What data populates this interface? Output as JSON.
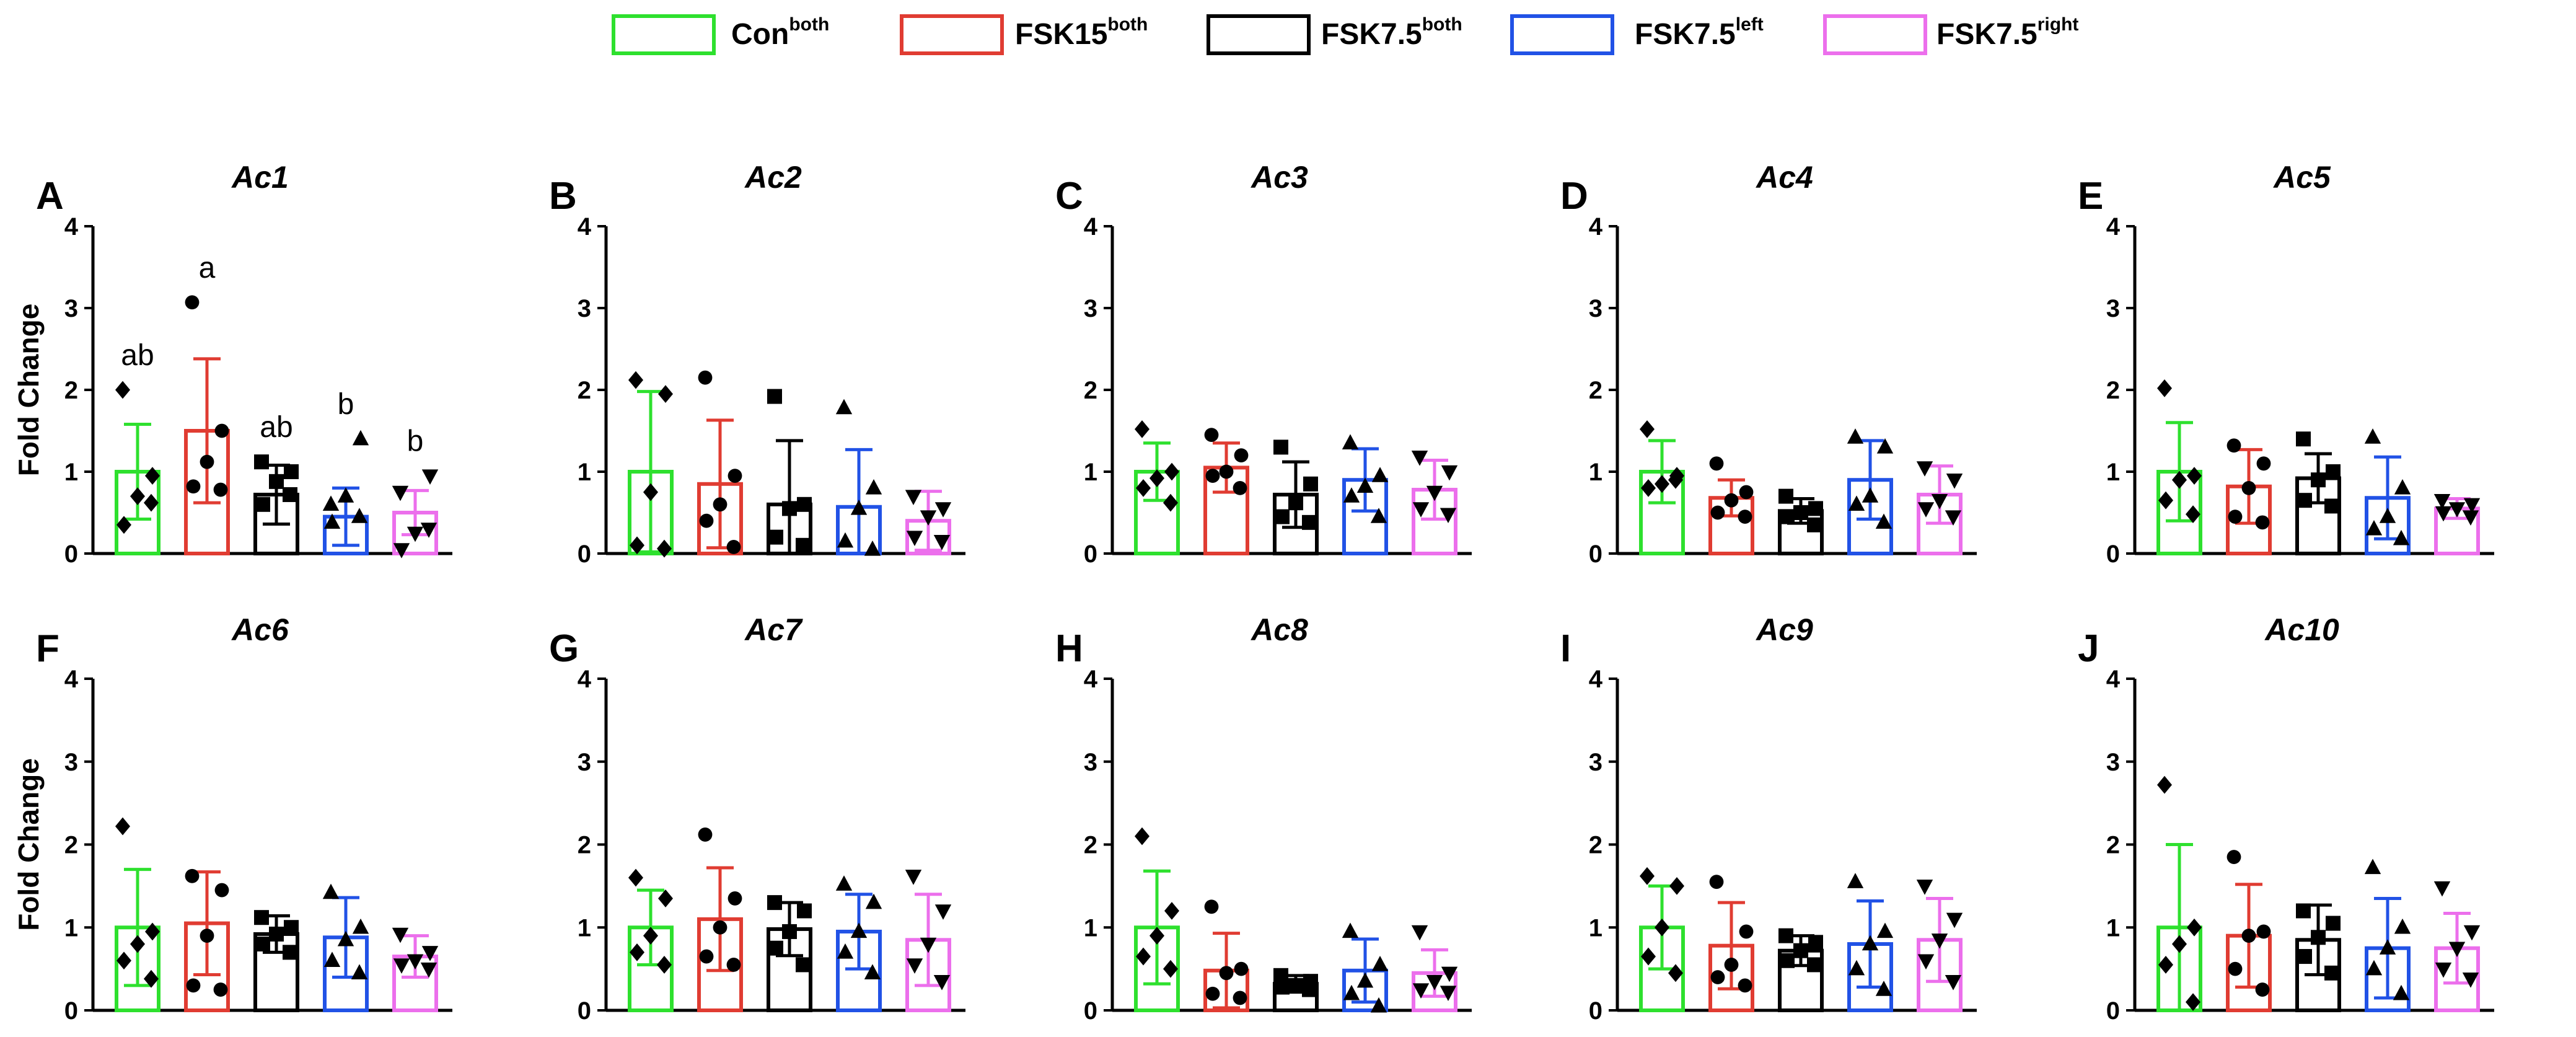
{
  "legend": {
    "items": [
      {
        "name": "Con",
        "sup": "both",
        "color": "#2EE02E"
      },
      {
        "name": "FSK15",
        "sup": "both",
        "color": "#E03C32"
      },
      {
        "name": "FSK7.5",
        "sup": "both",
        "color": "#000000"
      },
      {
        "name": "FSK7.5",
        "sup": "left",
        "color": "#2152E6"
      },
      {
        "name": "FSK7.5",
        "sup": "right",
        "color": "#EC6FEC"
      }
    ]
  },
  "common": {
    "ylabel": "Fold Change",
    "ylim": [
      0,
      4
    ],
    "yticks": [
      "0",
      "1",
      "2",
      "3",
      "4"
    ],
    "markers": [
      "diamond",
      "circle",
      "square",
      "triangle-up",
      "triangle-down"
    ]
  },
  "chart_data": [
    {
      "type": "bar",
      "letter": "A",
      "title": "Ac1",
      "ylabel": "Fold Change",
      "ylim": [
        0,
        4
      ],
      "categories": [
        "Conboth",
        "FSK15both",
        "FSK7.5both",
        "FSK7.5left",
        "FSK7.5right"
      ],
      "values": [
        1.0,
        1.5,
        0.72,
        0.45,
        0.5
      ],
      "sd": [
        0.58,
        0.88,
        0.36,
        0.35,
        0.27
      ],
      "points": [
        [
          2.0,
          0.95,
          0.7,
          0.35,
          0.62
        ],
        [
          3.07,
          1.5,
          1.12,
          0.82,
          0.78
        ],
        [
          1.12,
          1.0,
          0.88,
          0.6,
          0.72
        ],
        [
          0.6,
          1.4,
          0.7,
          0.38,
          0.45
        ],
        [
          0.75,
          0.95,
          0.25,
          0.05,
          0.3
        ]
      ],
      "annotations": [
        "ab",
        "a",
        "ab",
        "b",
        "b"
      ]
    },
    {
      "type": "bar",
      "letter": "B",
      "title": "Ac2",
      "ylabel": "",
      "ylim": [
        0,
        4
      ],
      "categories": [
        "Conboth",
        "FSK15both",
        "FSK7.5both",
        "FSK7.5left",
        "FSK7.5right"
      ],
      "values": [
        1.0,
        0.85,
        0.6,
        0.57,
        0.4
      ],
      "sd": [
        0.98,
        0.78,
        0.78,
        0.7,
        0.36
      ],
      "points": [
        [
          2.12,
          1.95,
          0.75,
          0.1,
          0.06
        ],
        [
          2.15,
          0.95,
          0.6,
          0.4,
          0.08
        ],
        [
          1.92,
          0.6,
          0.55,
          0.2,
          0.1
        ],
        [
          1.78,
          0.8,
          0.55,
          0.15,
          0.05
        ],
        [
          0.7,
          0.55,
          0.45,
          0.2,
          0.15
        ]
      ],
      "annotations": []
    },
    {
      "type": "bar",
      "letter": "C",
      "title": "Ac3",
      "ylabel": "",
      "ylim": [
        0,
        4
      ],
      "categories": [
        "Conboth",
        "FSK15both",
        "FSK7.5both",
        "FSK7.5left",
        "FSK7.5right"
      ],
      "values": [
        1.0,
        1.05,
        0.72,
        0.9,
        0.78
      ],
      "sd": [
        0.35,
        0.3,
        0.4,
        0.38,
        0.36
      ],
      "points": [
        [
          1.52,
          1.0,
          0.92,
          0.8,
          0.62
        ],
        [
          1.45,
          1.2,
          1.0,
          0.95,
          0.8
        ],
        [
          1.3,
          0.85,
          0.62,
          0.45,
          0.38
        ],
        [
          1.35,
          0.95,
          0.82,
          0.7,
          0.45
        ],
        [
          1.18,
          1.0,
          0.75,
          0.55,
          0.48
        ]
      ],
      "annotations": []
    },
    {
      "type": "bar",
      "letter": "D",
      "title": "Ac4",
      "ylabel": "",
      "ylim": [
        0,
        4
      ],
      "categories": [
        "Conboth",
        "FSK15both",
        "FSK7.5both",
        "FSK7.5left",
        "FSK7.5right"
      ],
      "values": [
        1.0,
        0.68,
        0.52,
        0.9,
        0.72
      ],
      "sd": [
        0.38,
        0.22,
        0.15,
        0.48,
        0.35
      ],
      "points": [
        [
          1.52,
          0.95,
          0.85,
          0.8,
          0.9
        ],
        [
          1.1,
          0.75,
          0.65,
          0.5,
          0.45
        ],
        [
          0.7,
          0.55,
          0.5,
          0.45,
          0.35
        ],
        [
          1.42,
          1.3,
          0.7,
          0.6,
          0.38
        ],
        [
          1.05,
          0.9,
          0.65,
          0.55,
          0.45
        ]
      ],
      "annotations": []
    },
    {
      "type": "bar",
      "letter": "E",
      "title": "Ac5",
      "ylabel": "",
      "ylim": [
        0,
        4
      ],
      "categories": [
        "Conboth",
        "FSK15both",
        "FSK7.5both",
        "FSK7.5left",
        "FSK7.5right"
      ],
      "values": [
        1.0,
        0.82,
        0.92,
        0.68,
        0.55
      ],
      "sd": [
        0.6,
        0.45,
        0.3,
        0.5,
        0.12
      ],
      "points": [
        [
          2.02,
          0.95,
          0.9,
          0.65,
          0.48
        ],
        [
          1.32,
          1.1,
          0.8,
          0.45,
          0.38
        ],
        [
          1.4,
          1.0,
          0.9,
          0.65,
          0.58
        ],
        [
          1.42,
          0.8,
          0.45,
          0.3,
          0.18
        ],
        [
          0.65,
          0.6,
          0.55,
          0.5,
          0.45
        ]
      ],
      "annotations": []
    },
    {
      "type": "bar",
      "letter": "F",
      "title": "Ac6",
      "ylabel": "Fold Change",
      "ylim": [
        0,
        4
      ],
      "categories": [
        "Conboth",
        "FSK15both",
        "FSK7.5both",
        "FSK7.5left",
        "FSK7.5right"
      ],
      "values": [
        1.0,
        1.05,
        0.92,
        0.88,
        0.65
      ],
      "sd": [
        0.7,
        0.62,
        0.22,
        0.48,
        0.25
      ],
      "points": [
        [
          2.22,
          0.95,
          0.8,
          0.6,
          0.38
        ],
        [
          1.62,
          1.45,
          0.9,
          0.3,
          0.25
        ],
        [
          1.12,
          1.0,
          0.92,
          0.8,
          0.7
        ],
        [
          1.42,
          1.0,
          0.85,
          0.6,
          0.45
        ],
        [
          0.92,
          0.7,
          0.6,
          0.55,
          0.5
        ]
      ],
      "annotations": []
    },
    {
      "type": "bar",
      "letter": "G",
      "title": "Ac7",
      "ylabel": "",
      "ylim": [
        0,
        4
      ],
      "categories": [
        "Conboth",
        "FSK15both",
        "FSK7.5both",
        "FSK7.5left",
        "FSK7.5right"
      ],
      "values": [
        1.0,
        1.1,
        0.98,
        0.95,
        0.85
      ],
      "sd": [
        0.45,
        0.62,
        0.32,
        0.45,
        0.55
      ],
      "points": [
        [
          1.6,
          1.35,
          0.9,
          0.7,
          0.55
        ],
        [
          2.12,
          1.35,
          1.0,
          0.65,
          0.55
        ],
        [
          1.3,
          1.2,
          0.95,
          0.75,
          0.55
        ],
        [
          1.52,
          1.3,
          0.95,
          0.7,
          0.45
        ],
        [
          1.62,
          1.2,
          0.8,
          0.55,
          0.35
        ]
      ],
      "annotations": []
    },
    {
      "type": "bar",
      "letter": "H",
      "title": "Ac8",
      "ylabel": "",
      "ylim": [
        0,
        4
      ],
      "categories": [
        "Conboth",
        "FSK15both",
        "FSK7.5both",
        "FSK7.5left",
        "FSK7.5right"
      ],
      "values": [
        1.0,
        0.48,
        0.32,
        0.48,
        0.45
      ],
      "sd": [
        0.68,
        0.45,
        0.1,
        0.38,
        0.28
      ],
      "points": [
        [
          2.1,
          1.2,
          0.9,
          0.65,
          0.5
        ],
        [
          1.25,
          0.5,
          0.45,
          0.2,
          0.15
        ],
        [
          0.42,
          0.35,
          0.3,
          0.28,
          0.25
        ],
        [
          0.95,
          0.55,
          0.35,
          0.2,
          0.05
        ],
        [
          0.95,
          0.45,
          0.35,
          0.25,
          0.22
        ]
      ],
      "annotations": []
    },
    {
      "type": "bar",
      "letter": "I",
      "title": "Ac9",
      "ylabel": "",
      "ylim": [
        0,
        4
      ],
      "categories": [
        "Conboth",
        "FSK15both",
        "FSK7.5both",
        "FSK7.5left",
        "FSK7.5right"
      ],
      "values": [
        1.0,
        0.78,
        0.72,
        0.8,
        0.85
      ],
      "sd": [
        0.5,
        0.52,
        0.18,
        0.52,
        0.5
      ],
      "points": [
        [
          1.62,
          1.5,
          1.0,
          0.65,
          0.45
        ],
        [
          1.55,
          0.95,
          0.55,
          0.4,
          0.3
        ],
        [
          0.9,
          0.82,
          0.72,
          0.6,
          0.55
        ],
        [
          1.55,
          0.95,
          0.8,
          0.5,
          0.25
        ],
        [
          1.5,
          1.1,
          0.85,
          0.6,
          0.35
        ]
      ],
      "annotations": []
    },
    {
      "type": "bar",
      "letter": "J",
      "title": "Ac10",
      "ylabel": "",
      "ylim": [
        0,
        4
      ],
      "categories": [
        "Conboth",
        "FSK15both",
        "FSK7.5both",
        "FSK7.5left",
        "FSK7.5right"
      ],
      "values": [
        1.0,
        0.9,
        0.85,
        0.75,
        0.75
      ],
      "sd": [
        1.0,
        0.62,
        0.42,
        0.6,
        0.42
      ],
      "points": [
        [
          2.72,
          1.0,
          0.8,
          0.55,
          0.1
        ],
        [
          1.85,
          0.95,
          0.9,
          0.5,
          0.25
        ],
        [
          1.2,
          1.05,
          0.88,
          0.65,
          0.45
        ],
        [
          1.72,
          1.0,
          0.75,
          0.5,
          0.2
        ],
        [
          1.48,
          0.95,
          0.75,
          0.5,
          0.38
        ]
      ],
      "annotations": []
    }
  ]
}
